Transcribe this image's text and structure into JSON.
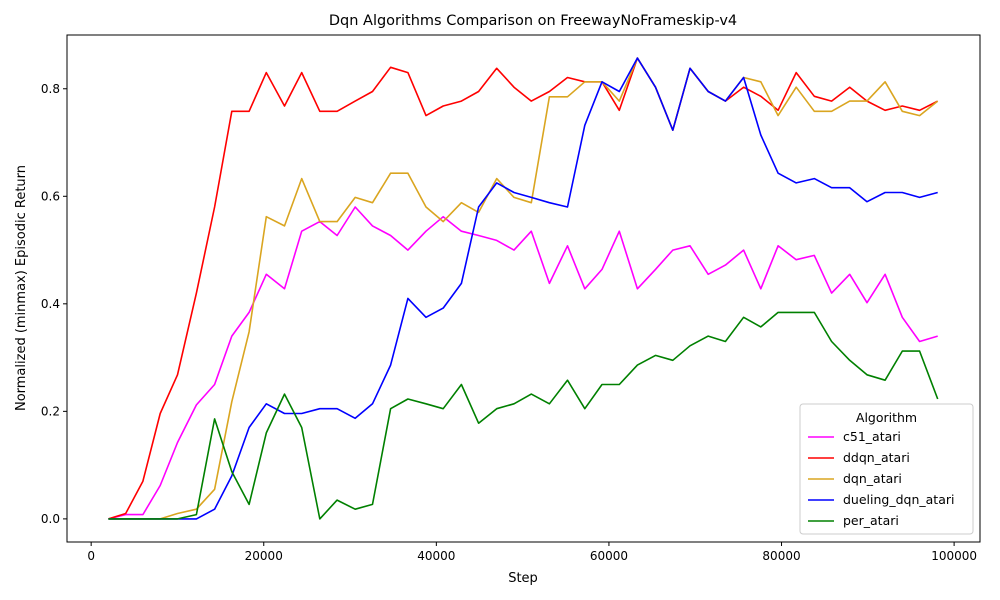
{
  "chart_data": {
    "type": "line",
    "title": "Dqn Algorithms Comparison on FreewayNoFrameskip-v4",
    "xlabel": "Step",
    "ylabel": "Normalized (minmax) Episodic Return",
    "xlim": [
      -2800,
      103000
    ],
    "ylim": [
      -0.043,
      0.9
    ],
    "xticks": [
      0,
      20000,
      40000,
      60000,
      80000,
      100000
    ],
    "xtick_labels": [
      "0",
      "20000",
      "40000",
      "60000",
      "80000",
      "100000"
    ],
    "yticks": [
      0.0,
      0.2,
      0.4,
      0.6,
      0.8
    ],
    "ytick_labels": [
      "0.0",
      "0.2",
      "0.4",
      "0.6",
      "0.8"
    ],
    "grid": false,
    "legend": {
      "title": "Algorithm",
      "position": "bottom-right"
    },
    "x": [
      2000,
      4000,
      6000,
      8000,
      10000,
      12200,
      14300,
      16300,
      18300,
      20300,
      22400,
      24400,
      26500,
      28500,
      30600,
      32600,
      34700,
      36700,
      38800,
      40800,
      42900,
      44900,
      47000,
      49000,
      51000,
      53100,
      55200,
      57200,
      59200,
      61200,
      63300,
      65400,
      67400,
      69400,
      71500,
      73500,
      75600,
      77600,
      79600,
      81700,
      83800,
      85800,
      87900,
      89900,
      92000,
      94000,
      96000,
      98100
    ],
    "series": [
      {
        "name": "c51_atari",
        "color": "#ff00ff",
        "values": [
          0.0,
          0.008,
          0.008,
          0.062,
          0.142,
          0.212,
          0.25,
          0.34,
          0.384,
          0.455,
          0.428,
          0.535,
          0.553,
          0.527,
          0.58,
          0.545,
          0.527,
          0.5,
          0.535,
          0.562,
          0.535,
          0.527,
          0.518,
          0.5,
          0.535,
          0.438,
          0.508,
          0.428,
          0.464,
          0.535,
          0.428,
          0.464,
          0.5,
          0.508,
          0.455,
          0.472,
          0.5,
          0.428,
          0.508,
          0.482,
          0.49,
          0.42,
          0.455,
          0.402,
          0.455,
          0.375,
          0.33,
          0.34
        ]
      },
      {
        "name": "ddqn_atari",
        "color": "#ff0000",
        "values": [
          0.0,
          0.01,
          0.07,
          0.196,
          0.268,
          0.42,
          0.58,
          0.758,
          0.758,
          0.83,
          0.768,
          0.83,
          0.758,
          0.758,
          0.777,
          0.795,
          0.84,
          0.83,
          0.75,
          0.768,
          0.777,
          0.795,
          0.838,
          0.803,
          0.777,
          0.795,
          0.821,
          0.813,
          0.813,
          0.76,
          0.857,
          0.803,
          0.723,
          0.838,
          0.795,
          0.777,
          0.803,
          0.786,
          0.76,
          0.83,
          0.786,
          0.777,
          0.803,
          0.777,
          0.76,
          0.768,
          0.76,
          0.777
        ]
      },
      {
        "name": "dqn_atari",
        "color": "#daa520",
        "values": [
          0.0,
          0.0,
          0.0,
          0.0,
          0.01,
          0.018,
          0.055,
          0.218,
          0.348,
          0.562,
          0.545,
          0.633,
          0.553,
          0.553,
          0.598,
          0.588,
          0.643,
          0.643,
          0.58,
          0.553,
          0.588,
          0.57,
          0.633,
          0.598,
          0.588,
          0.785,
          0.785,
          0.813,
          0.813,
          0.777,
          0.857,
          0.803,
          0.723,
          0.838,
          0.795,
          0.777,
          0.821,
          0.813,
          0.75,
          0.803,
          0.758,
          0.758,
          0.777,
          0.777,
          0.813,
          0.758,
          0.75,
          0.777
        ]
      },
      {
        "name": "dueling_dqn_atari",
        "color": "#0000ff",
        "values": [
          0.0,
          0.0,
          0.0,
          0.0,
          0.0,
          0.0,
          0.018,
          0.08,
          0.17,
          0.214,
          0.196,
          0.196,
          0.205,
          0.205,
          0.187,
          0.214,
          0.286,
          0.41,
          0.375,
          0.392,
          0.438,
          0.58,
          0.625,
          0.607,
          0.598,
          0.588,
          0.58,
          0.732,
          0.813,
          0.795,
          0.857,
          0.803,
          0.723,
          0.838,
          0.795,
          0.777,
          0.821,
          0.714,
          0.643,
          0.625,
          0.633,
          0.616,
          0.616,
          0.59,
          0.607,
          0.607,
          0.598,
          0.607
        ]
      },
      {
        "name": "per_atari",
        "color": "#008000",
        "values": [
          0.0,
          0.0,
          0.0,
          0.0,
          0.0,
          0.008,
          0.186,
          0.088,
          0.027,
          0.16,
          0.232,
          0.17,
          0.0,
          0.035,
          0.018,
          0.027,
          0.205,
          0.223,
          0.214,
          0.205,
          0.25,
          0.178,
          0.205,
          0.214,
          0.232,
          0.214,
          0.258,
          0.205,
          0.25,
          0.25,
          0.286,
          0.304,
          0.295,
          0.322,
          0.34,
          0.33,
          0.375,
          0.357,
          0.384,
          0.384,
          0.384,
          0.33,
          0.295,
          0.268,
          0.258,
          0.312,
          0.312,
          0.223
        ]
      }
    ]
  }
}
